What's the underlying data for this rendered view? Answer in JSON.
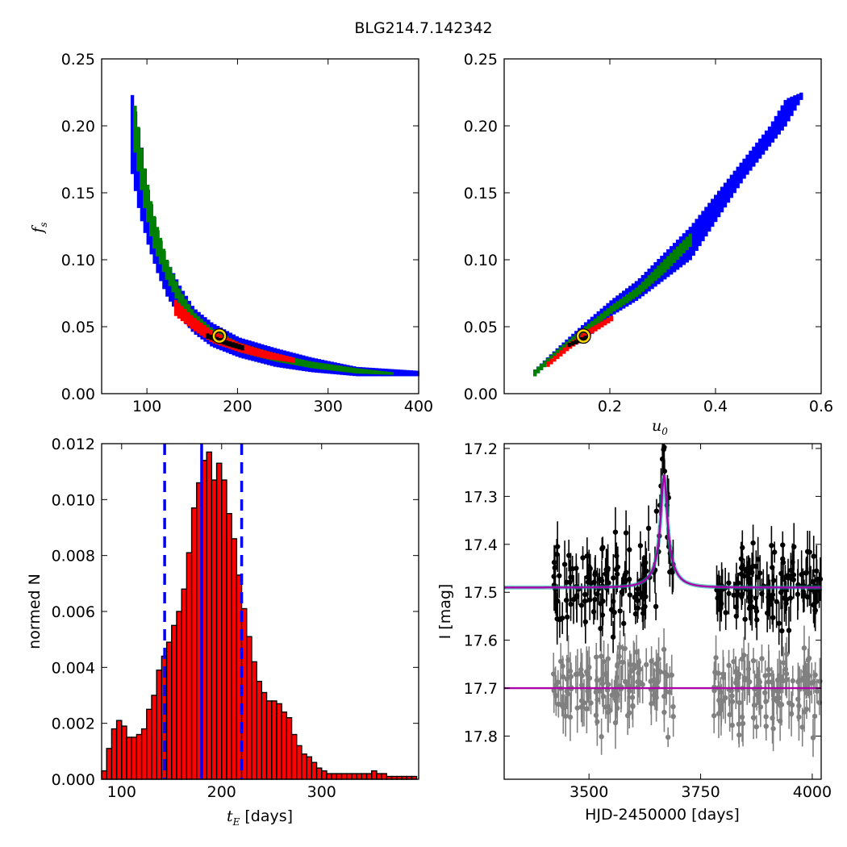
{
  "figure": {
    "title": "BLG214.7.142342"
  },
  "panels": {
    "fs_vs_tE": {
      "ylabel_main": "f",
      "ylabel_sub": "s",
      "xticks": [
        "100",
        "200",
        "300",
        "400"
      ],
      "yticks": [
        "0.00",
        "0.05",
        "0.10",
        "0.15",
        "0.20",
        "0.25"
      ]
    },
    "fs_vs_u0": {
      "xlabel_main": "u",
      "xlabel_sub": "0",
      "xticks": [
        "0.2",
        "0.4",
        "0.6"
      ],
      "yticks": [
        "0.00",
        "0.05",
        "0.10",
        "0.15",
        "0.20",
        "0.25"
      ]
    },
    "hist": {
      "xlabel_main": "t",
      "xlabel_sub": "E",
      "xlabel_rest": " [days]",
      "ylabel": "normed N",
      "xticks": [
        "100",
        "200",
        "300"
      ],
      "yticks": [
        "0.000",
        "0.002",
        "0.004",
        "0.006",
        "0.008",
        "0.010",
        "0.012"
      ]
    },
    "lightcurve": {
      "xlabel": "HJD-2450000 [days]",
      "ylabel": "I [mag]",
      "xticks": [
        "3500",
        "3750",
        "4000"
      ],
      "yticks": [
        "17.2",
        "17.3",
        "17.4",
        "17.5",
        "17.6",
        "17.7",
        "17.8"
      ]
    }
  },
  "chart_data": [
    {
      "type": "heatmap",
      "title": "",
      "xlabel": "",
      "ylabel": "f_s",
      "xlim": [
        50,
        400
      ],
      "ylim": [
        0,
        0.25
      ],
      "colors": {
        "outer": "#0000ff",
        "middle": "#008000",
        "inner": "#ff0000",
        "core": "#000000",
        "best_fit_marker": "#ffd700"
      },
      "confidence_bands": [
        {
          "region": "outer",
          "x": [
            82,
            90,
            100,
            110,
            120,
            135,
            150,
            170,
            200,
            240,
            280,
            330,
            400
          ],
          "y_low": [
            0.164,
            0.135,
            0.11,
            0.09,
            0.073,
            0.057,
            0.045,
            0.035,
            0.027,
            0.02,
            0.016,
            0.013,
            0.013
          ],
          "y_high": [
            0.223,
            0.195,
            0.15,
            0.122,
            0.1,
            0.08,
            0.064,
            0.053,
            0.042,
            0.034,
            0.027,
            0.02,
            0.017
          ]
        },
        {
          "region": "middle",
          "x": [
            85,
            95,
            105,
            120,
            135,
            150,
            170,
            200,
            240,
            280,
            330,
            370
          ],
          "y_low": [
            0.18,
            0.14,
            0.11,
            0.085,
            0.065,
            0.052,
            0.04,
            0.031,
            0.024,
            0.019,
            0.015,
            0.014
          ],
          "y_high": [
            0.215,
            0.17,
            0.135,
            0.1,
            0.077,
            0.061,
            0.049,
            0.038,
            0.03,
            0.024,
            0.019,
            0.016
          ]
        },
        {
          "region": "inner",
          "x": [
            130,
            150,
            170,
            200,
            230,
            260
          ],
          "y_low": [
            0.058,
            0.047,
            0.038,
            0.031,
            0.026,
            0.023
          ],
          "y_high": [
            0.07,
            0.057,
            0.047,
            0.038,
            0.032,
            0.027
          ]
        },
        {
          "region": "core",
          "x": [
            165,
            185,
            205
          ],
          "y_low": [
            0.041,
            0.036,
            0.032
          ],
          "y_high": [
            0.045,
            0.04,
            0.036
          ]
        }
      ],
      "best_fit": {
        "x": 180,
        "y": 0.043
      }
    },
    {
      "type": "heatmap",
      "title": "",
      "xlabel": "u_0",
      "ylabel": "",
      "xlim": [
        0,
        0.6
      ],
      "ylim": [
        0,
        0.25
      ],
      "colors": {
        "outer": "#0000ff",
        "middle": "#008000",
        "inner": "#ff0000",
        "core": "#000000",
        "best_fit_marker": "#ffd700"
      },
      "confidence_bands": [
        {
          "region": "outer",
          "x": [
            0.055,
            0.1,
            0.15,
            0.2,
            0.25,
            0.3,
            0.35,
            0.4,
            0.45,
            0.5,
            0.53,
            0.56
          ],
          "y_low": [
            0.013,
            0.03,
            0.04,
            0.058,
            0.07,
            0.085,
            0.1,
            0.13,
            0.16,
            0.185,
            0.2,
            0.22
          ],
          "y_high": [
            0.018,
            0.035,
            0.053,
            0.07,
            0.085,
            0.105,
            0.125,
            0.15,
            0.175,
            0.2,
            0.22,
            0.225
          ]
        },
        {
          "region": "middle",
          "x": [
            0.055,
            0.1,
            0.15,
            0.2,
            0.25,
            0.3,
            0.35
          ],
          "y_low": [
            0.013,
            0.03,
            0.044,
            0.06,
            0.073,
            0.09,
            0.11
          ],
          "y_high": [
            0.018,
            0.034,
            0.05,
            0.066,
            0.08,
            0.1,
            0.12
          ]
        },
        {
          "region": "inner",
          "x": [
            0.08,
            0.12,
            0.16,
            0.2
          ],
          "y_low": [
            0.02,
            0.033,
            0.044,
            0.054
          ],
          "y_high": [
            0.024,
            0.038,
            0.049,
            0.058
          ]
        },
        {
          "region": "core",
          "x": [
            0.12,
            0.16
          ],
          "y_low": [
            0.035,
            0.041
          ],
          "y_high": [
            0.038,
            0.045
          ]
        }
      ],
      "best_fit": {
        "x": 0.15,
        "y": 0.043
      }
    },
    {
      "type": "bar",
      "title": "",
      "xlabel": "t_E [days]",
      "ylabel": "normed N",
      "xlim": [
        80,
        397
      ],
      "ylim": [
        0,
        0.012
      ],
      "bin_width": 5,
      "bar_color": "#ff0000",
      "x_start": 80,
      "values": [
        0.0003,
        0.0011,
        0.0018,
        0.0021,
        0.0019,
        0.0015,
        0.0015,
        0.0016,
        0.0018,
        0.0025,
        0.003,
        0.0039,
        0.0044,
        0.0049,
        0.0055,
        0.006,
        0.0068,
        0.0081,
        0.0097,
        0.0106,
        0.0114,
        0.0117,
        0.0107,
        0.0113,
        0.0107,
        0.0095,
        0.0086,
        0.0073,
        0.0061,
        0.0051,
        0.0042,
        0.0035,
        0.0031,
        0.0028,
        0.0028,
        0.0027,
        0.0024,
        0.0022,
        0.0016,
        0.0012,
        0.0009,
        0.0008,
        0.0006,
        0.0004,
        0.0003,
        0.0002,
        0.0002,
        0.0002,
        0.0002,
        0.0002,
        0.0002,
        0.0002,
        0.0002,
        0.0002,
        0.0003,
        0.0002,
        0.0002,
        0.0001,
        0.0001,
        0.0001,
        0.0001,
        0.0001,
        0.0001
      ],
      "vlines": [
        {
          "x": 143,
          "style": "dashed",
          "color": "#0000ff"
        },
        {
          "x": 180,
          "style": "solid",
          "color": "#0000ff"
        },
        {
          "x": 220,
          "style": "dashed",
          "color": "#0000ff"
        }
      ]
    },
    {
      "type": "scatter",
      "title": "",
      "xlabel": "HJD-2450000 [days]",
      "ylabel": "I [mag]",
      "xlim": [
        3310,
        4020
      ],
      "ylim": [
        17.19,
        17.89
      ],
      "y_inverted": true,
      "series": [
        {
          "role": "data",
          "color": "#000000",
          "baseline_mag": 17.49,
          "peak_time": 3668,
          "peak_mag": 17.25,
          "time_windows": [
            [
              3420,
              3690
            ],
            [
              3780,
              4020
            ]
          ],
          "n_points": 260,
          "scatter": 0.04
        },
        {
          "role": "residuals",
          "color": "#808080",
          "baseline_mag": 17.7,
          "time_windows": [
            [
              3420,
              3690
            ],
            [
              3780,
              4020
            ]
          ],
          "n_points": 260,
          "scatter": 0.04
        }
      ],
      "model": {
        "color": "#aa00aa",
        "band_color": "#00b0a0",
        "t0": 3668,
        "tE": 180,
        "u0": 0.15,
        "fs": 0.043,
        "baseline_mag": 17.49,
        "residual_baseline": 17.7
      }
    }
  ]
}
